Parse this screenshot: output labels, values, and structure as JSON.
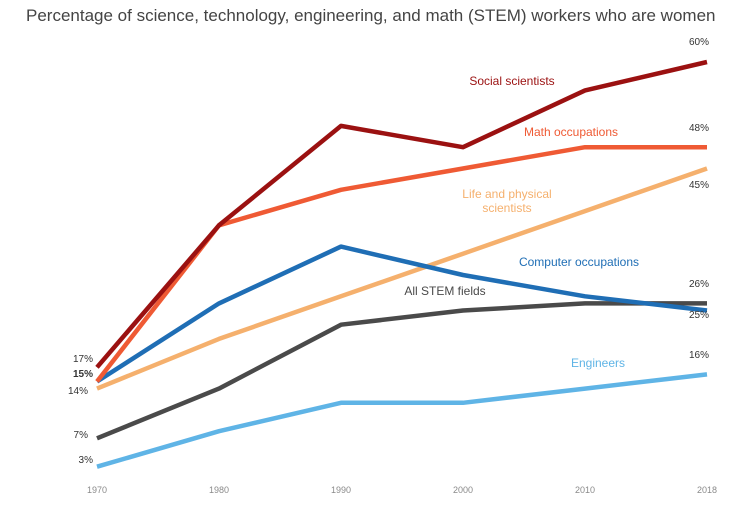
{
  "title": "Percentage of science, technology, engineering, and math (STEM) workers who are women",
  "chart_data": {
    "type": "line",
    "title": "Percentage of science, technology, engineering, and math (STEM) workers who are women",
    "x": [
      1970,
      1980,
      1990,
      2000,
      2010,
      2018
    ],
    "x_tick_labels": [
      "1970",
      "1980",
      "1990",
      "2000",
      "2010",
      "2018"
    ],
    "ylim": [
      0,
      65
    ],
    "grid": false,
    "legend": "direct labels",
    "series": [
      {
        "name": "Social scientists",
        "color": "#9b1111",
        "values": [
          17,
          37,
          51,
          48,
          56,
          60
        ],
        "start_label": "17%",
        "end_label": "60%"
      },
      {
        "name": "Math occupations",
        "color": "#ef5a34",
        "values": [
          15,
          37,
          42,
          45,
          48,
          48
        ],
        "start_label": "15%",
        "end_label": "48%"
      },
      {
        "name": "Life and physical scientists",
        "label_lines": [
          "Life and physical",
          "scientists"
        ],
        "color": "#f5b06d",
        "values": [
          14,
          21,
          27,
          33,
          39,
          45
        ],
        "start_label": "14%",
        "end_label": "45%"
      },
      {
        "name": "Computer occupations",
        "color": "#1f6eb5",
        "values": [
          15,
          26,
          34,
          30,
          27,
          25
        ],
        "start_label": "15%",
        "end_label": "25%"
      },
      {
        "name": "All STEM fields",
        "color": "#4a4a4a",
        "values": [
          7,
          14,
          23,
          25,
          26,
          26
        ],
        "start_label": "7%",
        "end_label": "26%"
      },
      {
        "name": "Engineers",
        "color": "#5fb4e6",
        "values": [
          3,
          8,
          12,
          12,
          14,
          16
        ],
        "start_label": "3%",
        "end_label": "16%"
      }
    ]
  }
}
